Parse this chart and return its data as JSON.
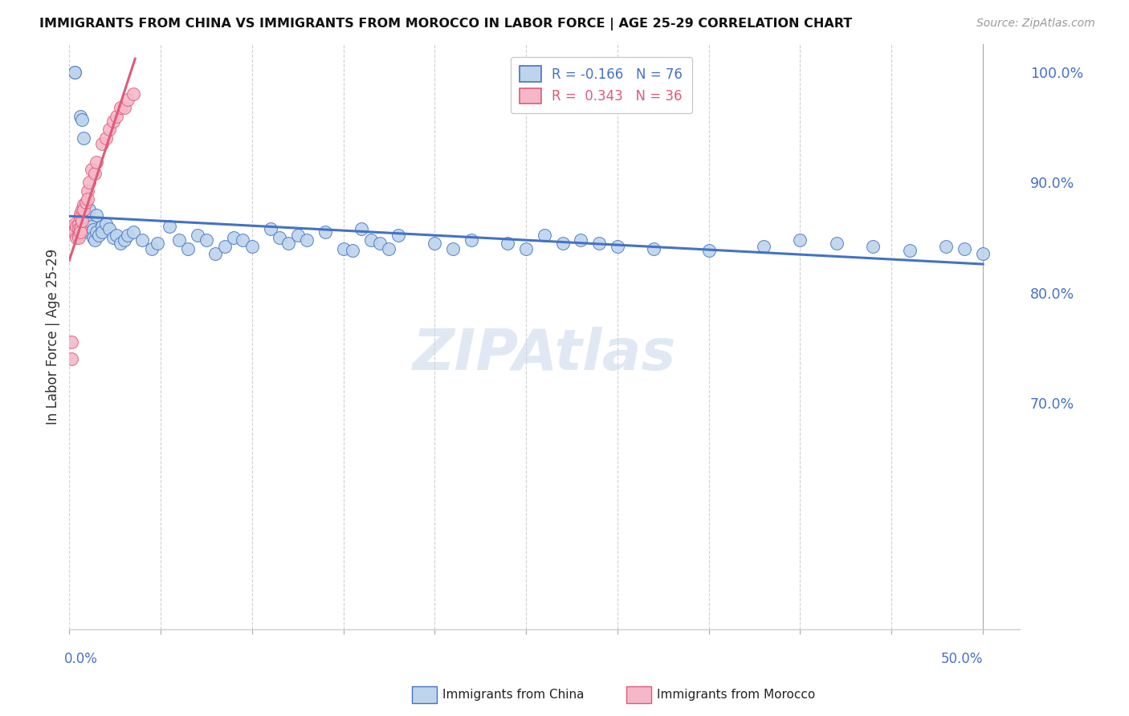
{
  "title": "IMMIGRANTS FROM CHINA VS IMMIGRANTS FROM MOROCCO IN LABOR FORCE | AGE 25-29 CORRELATION CHART",
  "source": "Source: ZipAtlas.com",
  "ylabel": "In Labor Force | Age 25-29",
  "legend_china_r": "R = -0.166",
  "legend_china_n": "N = 76",
  "legend_morocco_r": "R =  0.343",
  "legend_morocco_n": "N = 36",
  "legend_label_china": "Immigrants from China",
  "legend_label_morocco": "Immigrants from Morocco",
  "china_face_color": "#bed4eb",
  "china_edge_color": "#4472c4",
  "morocco_face_color": "#f5b8c8",
  "morocco_edge_color": "#e05a7a",
  "china_line_color": "#4472c4",
  "morocco_line_color": "#e05a7a",
  "right_axis_color": "#4472c4",
  "background_color": "#ffffff",
  "xlim": [
    0.0,
    0.52
  ],
  "ylim": [
    0.495,
    1.025
  ],
  "china_x": [
    0.003,
    0.003,
    0.006,
    0.007,
    0.008,
    0.009,
    0.009,
    0.01,
    0.01,
    0.01,
    0.011,
    0.011,
    0.012,
    0.012,
    0.013,
    0.013,
    0.014,
    0.015,
    0.015,
    0.016,
    0.018,
    0.018,
    0.02,
    0.022,
    0.024,
    0.026,
    0.028,
    0.03,
    0.032,
    0.035,
    0.04,
    0.045,
    0.048,
    0.055,
    0.06,
    0.065,
    0.07,
    0.075,
    0.08,
    0.085,
    0.09,
    0.095,
    0.1,
    0.11,
    0.115,
    0.12,
    0.125,
    0.13,
    0.14,
    0.15,
    0.155,
    0.16,
    0.165,
    0.17,
    0.175,
    0.18,
    0.2,
    0.21,
    0.22,
    0.24,
    0.25,
    0.26,
    0.27,
    0.28,
    0.29,
    0.3,
    0.32,
    0.35,
    0.38,
    0.4,
    0.42,
    0.44,
    0.46,
    0.48,
    0.49,
    0.5
  ],
  "china_y": [
    1.0,
    1.0,
    0.96,
    0.957,
    0.94,
    0.88,
    0.87,
    0.865,
    0.862,
    0.855,
    0.875,
    0.862,
    0.86,
    0.855,
    0.857,
    0.85,
    0.848,
    0.87,
    0.855,
    0.852,
    0.86,
    0.855,
    0.862,
    0.858,
    0.85,
    0.852,
    0.845,
    0.848,
    0.852,
    0.855,
    0.848,
    0.84,
    0.845,
    0.86,
    0.848,
    0.84,
    0.852,
    0.848,
    0.835,
    0.842,
    0.85,
    0.848,
    0.842,
    0.858,
    0.85,
    0.845,
    0.852,
    0.848,
    0.855,
    0.84,
    0.838,
    0.858,
    0.848,
    0.845,
    0.84,
    0.852,
    0.845,
    0.84,
    0.848,
    0.845,
    0.84,
    0.852,
    0.845,
    0.848,
    0.845,
    0.842,
    0.84,
    0.838,
    0.842,
    0.848,
    0.845,
    0.842,
    0.838,
    0.842,
    0.84,
    0.835
  ],
  "morocco_x": [
    0.001,
    0.001,
    0.002,
    0.002,
    0.003,
    0.003,
    0.004,
    0.004,
    0.005,
    0.005,
    0.005,
    0.005,
    0.006,
    0.006,
    0.006,
    0.006,
    0.007,
    0.007,
    0.008,
    0.008,
    0.009,
    0.01,
    0.01,
    0.011,
    0.012,
    0.014,
    0.015,
    0.018,
    0.02,
    0.022,
    0.024,
    0.026,
    0.028,
    0.03,
    0.032,
    0.035
  ],
  "morocco_y": [
    0.74,
    0.755,
    0.86,
    0.855,
    0.862,
    0.855,
    0.86,
    0.85,
    0.862,
    0.858,
    0.852,
    0.85,
    0.872,
    0.868,
    0.858,
    0.855,
    0.875,
    0.865,
    0.88,
    0.875,
    0.882,
    0.892,
    0.885,
    0.9,
    0.912,
    0.908,
    0.918,
    0.935,
    0.94,
    0.948,
    0.955,
    0.96,
    0.968,
    0.968,
    0.975,
    0.98
  ],
  "china_trend_x": [
    0.0,
    0.5
  ],
  "china_trend_y": [
    0.87,
    0.84
  ],
  "morocco_trend_x": [
    0.0,
    0.036
  ],
  "morocco_trend_y": [
    0.84,
    0.99
  ],
  "ytick_vals": [
    1.0,
    0.9,
    0.8,
    0.7
  ],
  "ytick_labels": [
    "100.0%",
    "90.0%",
    "80.0%",
    "70.0%"
  ],
  "scatter_size": 130
}
